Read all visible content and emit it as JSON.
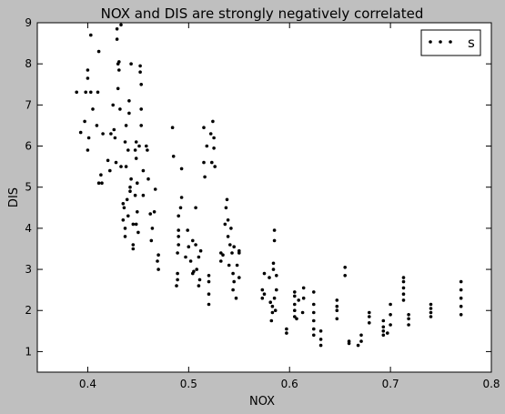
{
  "chart_data": {
    "type": "scatter",
    "title": "NOX and DIS are strongly negatively correlated",
    "xlabel": "NOX",
    "ylabel": "DIS",
    "xlim": [
      0.35,
      0.8
    ],
    "ylim": [
      0.5,
      9
    ],
    "x_ticks": [
      "0.4",
      "0.5",
      "0.6",
      "0.7",
      "0.8"
    ],
    "x_tick_values": [
      0.4,
      0.5,
      0.6,
      0.7,
      0.8
    ],
    "y_ticks": [
      "1",
      "2",
      "3",
      "4",
      "5",
      "6",
      "7",
      "8",
      "9"
    ],
    "y_tick_values": [
      1,
      2,
      3,
      4,
      5,
      6,
      7,
      8,
      9
    ],
    "grid": false,
    "legend_position": "top-right",
    "marker_color": "#000000",
    "series": [
      {
        "name": "s",
        "points": [
          [
            0.389,
            7.31
          ],
          [
            0.393,
            6.33
          ],
          [
            0.397,
            6.6
          ],
          [
            0.398,
            7.31
          ],
          [
            0.4,
            5.9
          ],
          [
            0.401,
            6.2
          ],
          [
            0.403,
            8.7
          ],
          [
            0.403,
            7.31
          ],
          [
            0.405,
            6.9
          ],
          [
            0.409,
            6.5
          ],
          [
            0.41,
            7.31
          ],
          [
            0.411,
            8.3
          ],
          [
            0.411,
            5.1
          ],
          [
            0.413,
            5.3
          ],
          [
            0.414,
            5.1
          ],
          [
            0.415,
            6.3
          ],
          [
            0.4,
            7.85
          ],
          [
            0.4,
            7.65
          ],
          [
            0.42,
            5.65
          ],
          [
            0.422,
            5.4
          ],
          [
            0.423,
            6.3
          ],
          [
            0.425,
            7.0
          ],
          [
            0.426,
            6.4
          ],
          [
            0.427,
            6.2
          ],
          [
            0.428,
            5.6
          ],
          [
            0.429,
            8.85
          ],
          [
            0.429,
            8.6
          ],
          [
            0.43,
            8.0
          ],
          [
            0.43,
            7.4
          ],
          [
            0.431,
            7.85
          ],
          [
            0.431,
            8.05
          ],
          [
            0.432,
            6.9
          ],
          [
            0.433,
            8.95
          ],
          [
            0.433,
            5.5
          ],
          [
            0.435,
            4.6
          ],
          [
            0.435,
            4.2
          ],
          [
            0.436,
            4.5
          ],
          [
            0.437,
            3.8
          ],
          [
            0.437,
            4.0
          ],
          [
            0.437,
            6.1
          ],
          [
            0.438,
            6.5
          ],
          [
            0.438,
            5.5
          ],
          [
            0.439,
            4.7
          ],
          [
            0.44,
            4.3
          ],
          [
            0.44,
            5.9
          ],
          [
            0.441,
            6.8
          ],
          [
            0.441,
            7.1
          ],
          [
            0.442,
            5.0
          ],
          [
            0.442,
            4.9
          ],
          [
            0.443,
            8.0
          ],
          [
            0.443,
            5.2
          ],
          [
            0.445,
            4.1
          ],
          [
            0.445,
            3.5
          ],
          [
            0.445,
            3.6
          ],
          [
            0.447,
            4.8
          ],
          [
            0.447,
            5.9
          ],
          [
            0.448,
            4.1
          ],
          [
            0.448,
            5.7
          ],
          [
            0.448,
            6.1
          ],
          [
            0.449,
            5.1
          ],
          [
            0.449,
            4.4
          ],
          [
            0.45,
            3.9
          ],
          [
            0.451,
            6.0
          ],
          [
            0.452,
            7.8
          ],
          [
            0.452,
            7.95
          ],
          [
            0.453,
            7.5
          ],
          [
            0.453,
            6.9
          ],
          [
            0.453,
            6.5
          ],
          [
            0.455,
            4.8
          ],
          [
            0.455,
            5.4
          ],
          [
            0.458,
            6.0
          ],
          [
            0.459,
            5.9
          ],
          [
            0.46,
            5.2
          ],
          [
            0.462,
            4.35
          ],
          [
            0.463,
            3.7
          ],
          [
            0.464,
            4.0
          ],
          [
            0.466,
            4.4
          ],
          [
            0.467,
            4.95
          ],
          [
            0.469,
            3.2
          ],
          [
            0.47,
            3.35
          ],
          [
            0.47,
            3.0
          ],
          [
            0.484,
            6.45
          ],
          [
            0.485,
            5.75
          ],
          [
            0.488,
            2.6
          ],
          [
            0.489,
            2.75
          ],
          [
            0.489,
            2.9
          ],
          [
            0.489,
            3.4
          ],
          [
            0.49,
            3.8
          ],
          [
            0.49,
            3.95
          ],
          [
            0.49,
            4.3
          ],
          [
            0.49,
            3.6
          ],
          [
            0.492,
            4.5
          ],
          [
            0.493,
            4.75
          ],
          [
            0.493,
            5.45
          ],
          [
            0.497,
            3.3
          ],
          [
            0.499,
            3.95
          ],
          [
            0.5,
            3.55
          ],
          [
            0.502,
            3.2
          ],
          [
            0.504,
            3.7
          ],
          [
            0.504,
            2.9
          ],
          [
            0.505,
            2.95
          ],
          [
            0.507,
            4.5
          ],
          [
            0.507,
            3.6
          ],
          [
            0.508,
            3.0
          ],
          [
            0.51,
            2.6
          ],
          [
            0.51,
            3.3
          ],
          [
            0.511,
            2.75
          ],
          [
            0.512,
            3.45
          ],
          [
            0.515,
            6.45
          ],
          [
            0.515,
            5.6
          ],
          [
            0.516,
            5.25
          ],
          [
            0.518,
            6.0
          ],
          [
            0.52,
            2.85
          ],
          [
            0.52,
            2.15
          ],
          [
            0.52,
            2.4
          ],
          [
            0.52,
            2.7
          ],
          [
            0.522,
            6.3
          ],
          [
            0.523,
            5.6
          ],
          [
            0.524,
            6.6
          ],
          [
            0.525,
            6.2
          ],
          [
            0.525,
            5.95
          ],
          [
            0.526,
            5.5
          ],
          [
            0.532,
            3.2
          ],
          [
            0.532,
            3.4
          ],
          [
            0.534,
            3.35
          ],
          [
            0.536,
            4.1
          ],
          [
            0.537,
            4.5
          ],
          [
            0.538,
            4.7
          ],
          [
            0.539,
            3.8
          ],
          [
            0.539,
            4.2
          ],
          [
            0.54,
            3.1
          ],
          [
            0.541,
            3.6
          ],
          [
            0.542,
            4.0
          ],
          [
            0.543,
            3.4
          ],
          [
            0.544,
            2.9
          ],
          [
            0.544,
            2.5
          ],
          [
            0.545,
            2.7
          ],
          [
            0.545,
            3.55
          ],
          [
            0.547,
            2.3
          ],
          [
            0.548,
            3.1
          ],
          [
            0.55,
            2.8
          ],
          [
            0.55,
            3.4
          ],
          [
            0.55,
            3.45
          ],
          [
            0.573,
            2.3
          ],
          [
            0.573,
            2.5
          ],
          [
            0.575,
            2.4
          ],
          [
            0.575,
            2.9
          ],
          [
            0.58,
            2.8
          ],
          [
            0.581,
            2.2
          ],
          [
            0.582,
            1.75
          ],
          [
            0.583,
            1.95
          ],
          [
            0.583,
            2.1
          ],
          [
            0.584,
            3.0
          ],
          [
            0.584,
            3.15
          ],
          [
            0.585,
            3.7
          ],
          [
            0.585,
            3.95
          ],
          [
            0.585,
            2.3
          ],
          [
            0.586,
            2.0
          ],
          [
            0.587,
            2.5
          ],
          [
            0.587,
            2.85
          ],
          [
            0.597,
            1.45
          ],
          [
            0.597,
            1.55
          ],
          [
            0.605,
            1.85
          ],
          [
            0.605,
            2.0
          ],
          [
            0.605,
            2.15
          ],
          [
            0.605,
            2.35
          ],
          [
            0.605,
            2.45
          ],
          [
            0.607,
            1.8
          ],
          [
            0.609,
            2.25
          ],
          [
            0.613,
            1.95
          ],
          [
            0.614,
            2.3
          ],
          [
            0.614,
            2.55
          ],
          [
            0.624,
            1.4
          ],
          [
            0.624,
            1.55
          ],
          [
            0.624,
            1.75
          ],
          [
            0.624,
            1.95
          ],
          [
            0.624,
            2.15
          ],
          [
            0.624,
            2.45
          ],
          [
            0.631,
            1.15
          ],
          [
            0.631,
            1.3
          ],
          [
            0.631,
            1.5
          ],
          [
            0.647,
            1.8
          ],
          [
            0.647,
            2.0
          ],
          [
            0.647,
            2.1
          ],
          [
            0.647,
            2.25
          ],
          [
            0.655,
            2.85
          ],
          [
            0.655,
            3.05
          ],
          [
            0.659,
            1.2
          ],
          [
            0.659,
            1.25
          ],
          [
            0.668,
            1.15
          ],
          [
            0.671,
            1.25
          ],
          [
            0.671,
            1.4
          ],
          [
            0.679,
            1.7
          ],
          [
            0.679,
            1.85
          ],
          [
            0.679,
            1.95
          ],
          [
            0.693,
            1.4
          ],
          [
            0.693,
            1.5
          ],
          [
            0.693,
            1.6
          ],
          [
            0.693,
            1.75
          ],
          [
            0.697,
            1.45
          ],
          [
            0.7,
            1.65
          ],
          [
            0.7,
            1.9
          ],
          [
            0.7,
            2.15
          ],
          [
            0.713,
            2.25
          ],
          [
            0.713,
            2.4
          ],
          [
            0.713,
            2.55
          ],
          [
            0.713,
            2.7
          ],
          [
            0.713,
            2.8
          ],
          [
            0.718,
            1.65
          ],
          [
            0.718,
            1.8
          ],
          [
            0.718,
            1.9
          ],
          [
            0.74,
            1.85
          ],
          [
            0.74,
            1.95
          ],
          [
            0.74,
            2.05
          ],
          [
            0.74,
            2.15
          ],
          [
            0.77,
            1.9
          ],
          [
            0.77,
            2.1
          ],
          [
            0.77,
            2.3
          ],
          [
            0.77,
            2.5
          ],
          [
            0.77,
            2.7
          ]
        ]
      }
    ]
  }
}
